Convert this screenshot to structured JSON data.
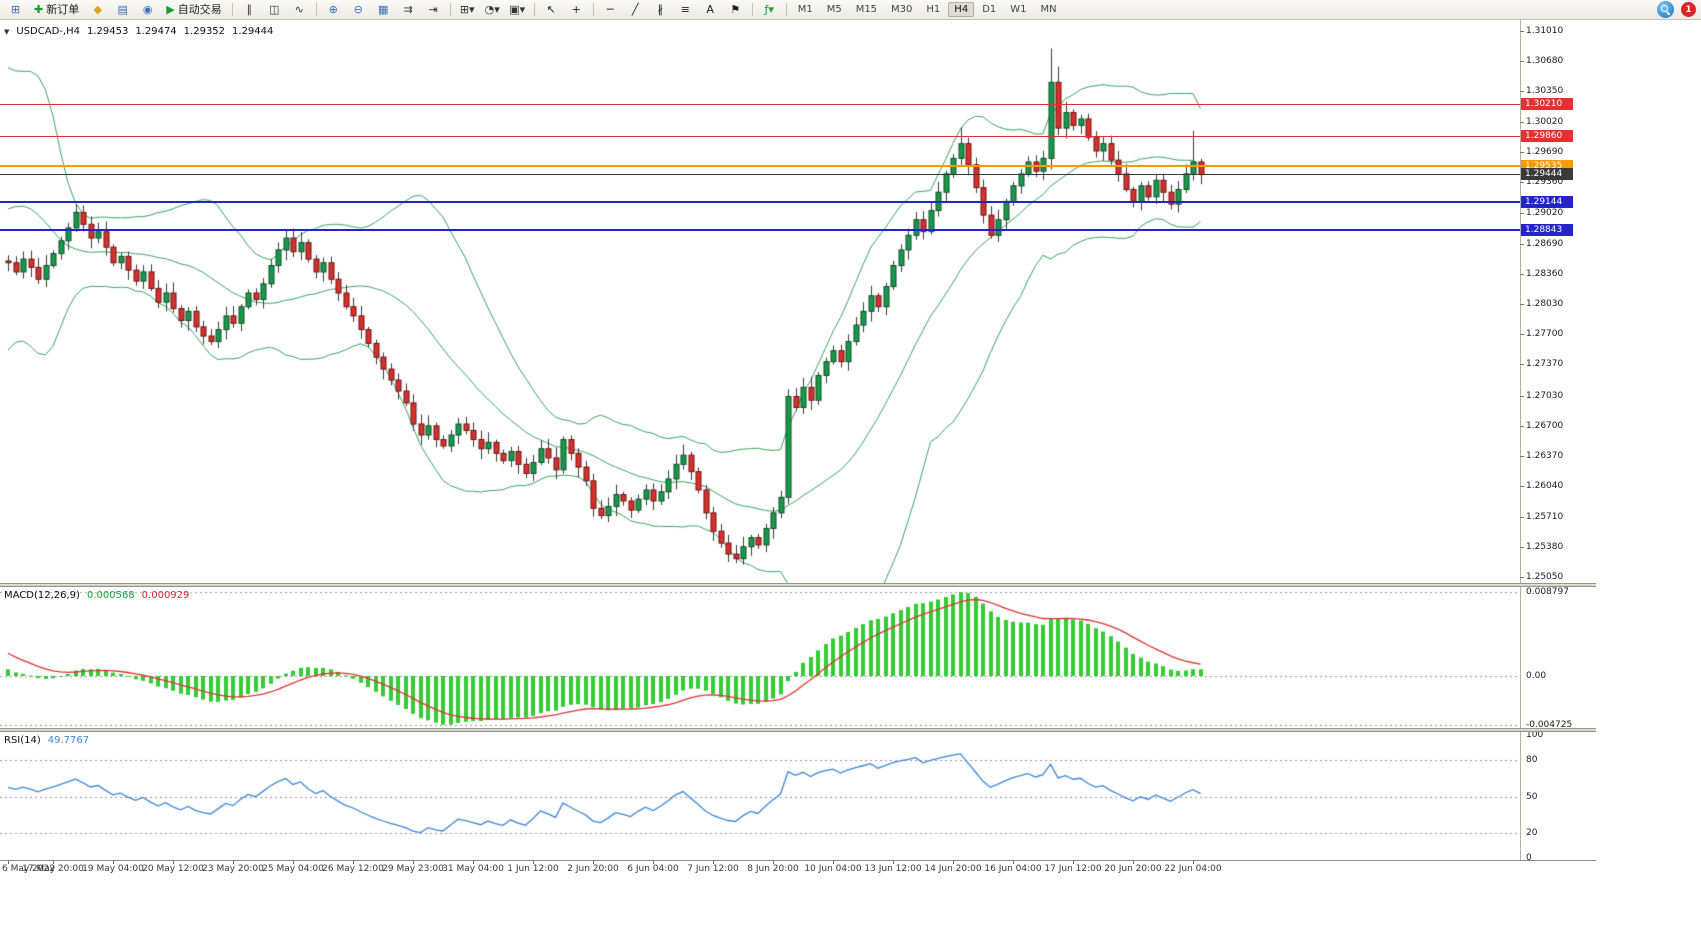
{
  "toolbar": {
    "items": [
      {
        "t": "icon",
        "n": "new-chart-icon",
        "g": "⊞",
        "c": "#3a6fb8"
      },
      {
        "t": "btn",
        "n": "new-order-button",
        "g": "✚",
        "c": "#12a02c",
        "label": "新订单"
      },
      {
        "t": "icon",
        "n": "profiles-icon",
        "g": "◆",
        "c": "#d9a520"
      },
      {
        "t": "icon",
        "n": "market-watch-icon",
        "g": "▤",
        "c": "#3a6fb8"
      },
      {
        "t": "icon",
        "n": "navigator-icon",
        "g": "◉",
        "c": "#3a6fb8"
      },
      {
        "t": "btn",
        "n": "auto-trading-button",
        "g": "▶",
        "c": "#12a02c",
        "label": "自动交易"
      },
      {
        "t": "sep"
      },
      {
        "t": "icon",
        "n": "bar-chart-icon",
        "g": "∥",
        "c": "#333333"
      },
      {
        "t": "icon",
        "n": "candlestick-chart-icon",
        "g": "◫",
        "c": "#333333"
      },
      {
        "t": "icon",
        "n": "line-chart-icon",
        "g": "∿",
        "c": "#333333"
      },
      {
        "t": "sep"
      },
      {
        "t": "icon",
        "n": "zoom-in-icon",
        "g": "⊕",
        "c": "#3a6fb8"
      },
      {
        "t": "icon",
        "n": "zoom-out-icon",
        "g": "⊖",
        "c": "#3a6fb8"
      },
      {
        "t": "icon",
        "n": "tile-windows-icon",
        "g": "▦",
        "c": "#3a6fb8"
      },
      {
        "t": "icon",
        "n": "auto-scroll-icon",
        "g": "⇉",
        "c": "#333333"
      },
      {
        "t": "icon",
        "n": "chart-shift-icon",
        "g": "⇥",
        "c": "#333333"
      },
      {
        "t": "sep"
      },
      {
        "t": "icon",
        "n": "new-chart-menu-icon",
        "g": "⊞▾",
        "c": "#333333"
      },
      {
        "t": "icon",
        "n": "periods-menu-icon",
        "g": "◔▾",
        "c": "#333333"
      },
      {
        "t": "icon",
        "n": "templates-menu-icon",
        "g": "▣▾",
        "c": "#333333"
      },
      {
        "t": "sep"
      },
      {
        "t": "icon",
        "n": "cursor-icon",
        "g": "↖",
        "c": "#222222"
      },
      {
        "t": "icon",
        "n": "crosshair-icon",
        "g": "+",
        "c": "#222222"
      },
      {
        "t": "sep"
      },
      {
        "t": "icon",
        "n": "horizontal-line-icon",
        "g": "─",
        "c": "#222222"
      },
      {
        "t": "icon",
        "n": "trendline-icon",
        "g": "╱",
        "c": "#222222"
      },
      {
        "t": "icon",
        "n": "equidistant-channel-icon",
        "g": "∦",
        "c": "#222222"
      },
      {
        "t": "icon",
        "n": "fibonacci-icon",
        "g": "≡",
        "c": "#222222"
      },
      {
        "t": "icon",
        "n": "text-tool-icon",
        "g": "A",
        "c": "#222222"
      },
      {
        "t": "icon",
        "n": "arrow-tool-icon",
        "g": "⚑",
        "c": "#222222"
      },
      {
        "t": "sep"
      },
      {
        "t": "icon",
        "n": "indicators-icon",
        "g": "ƒ▾",
        "c": "#12a02c"
      },
      {
        "t": "sep"
      }
    ],
    "timeframes": [
      "M1",
      "M5",
      "M15",
      "M30",
      "H1",
      "H4",
      "D1",
      "W1",
      "MN"
    ],
    "active_timeframe": "H4",
    "notification_count": "1"
  },
  "chart_data": {
    "type": "candlestick",
    "symbol_label": "USDCAD-,H4",
    "symbol_marker": "▼",
    "ohlc_display": {
      "open": "1.29453",
      "high": "1.29474",
      "low": "1.29352",
      "close": "1.29444"
    },
    "price_axis": {
      "top_value": 1.3101,
      "bottom_value": 1.2505,
      "labels": [
        "1.31010",
        "1.30680",
        "1.30350",
        "1.30020",
        "1.29690",
        "1.29360",
        "1.29020",
        "1.28690",
        "1.28360",
        "1.28030",
        "1.27700",
        "1.27370",
        "1.27030",
        "1.26700",
        "1.26370",
        "1.26040",
        "1.25710",
        "1.25380",
        "1.25050"
      ]
    },
    "time_axis": {
      "labels": [
        {
          "text": "6 May 2022",
          "bar": 0
        },
        {
          "text": "17 May 20:00",
          "bar": 6
        },
        {
          "text": "19 May 04:00",
          "bar": 14
        },
        {
          "text": "20 May 12:00",
          "bar": 22
        },
        {
          "text": "23 May 20:00",
          "bar": 30
        },
        {
          "text": "25 May 04:00",
          "bar": 38
        },
        {
          "text": "26 May 12:00",
          "bar": 46
        },
        {
          "text": "29 May 23:00",
          "bar": 54
        },
        {
          "text": "31 May 04:00",
          "bar": 62
        },
        {
          "text": "1 Jun 12:00",
          "bar": 70
        },
        {
          "text": "2 Jun 20:00",
          "bar": 78
        },
        {
          "text": "6 Jun 04:00",
          "bar": 86
        },
        {
          "text": "7 Jun 12:00",
          "bar": 94
        },
        {
          "text": "8 Jun 20:00",
          "bar": 102
        },
        {
          "text": "10 Jun 04:00",
          "bar": 110
        },
        {
          "text": "13 Jun 12:00",
          "bar": 118
        },
        {
          "text": "14 Jun 20:00",
          "bar": 126
        },
        {
          "text": "16 Jun 04:00",
          "bar": 134
        },
        {
          "text": "17 Jun 12:00",
          "bar": 142
        },
        {
          "text": "20 Jun 20:00",
          "bar": 150
        },
        {
          "text": "22 Jun 04:00",
          "bar": 158
        }
      ]
    },
    "levels": [
      {
        "name": "resistance-line-upper",
        "price": 1.3021,
        "label": "1.30210",
        "color": "#e43030",
        "width": 1
      },
      {
        "name": "resistance-line-lower",
        "price": 1.2986,
        "label": "1.29860",
        "color": "#e43030",
        "width": 1
      },
      {
        "name": "alert-line",
        "price": 1.29535,
        "label": "1.29535",
        "color": "#f59b00",
        "width": 2
      },
      {
        "name": "bid-price-line",
        "price": 1.29444,
        "label": "1.29444",
        "color": "#3a3a3a",
        "width": 1
      },
      {
        "name": "support-line-upper",
        "price": 1.29144,
        "label": "1.29144",
        "color": "#2424c8",
        "width": 2
      },
      {
        "name": "support-line-lower",
        "price": 1.28843,
        "label": "1.28843",
        "color": "#2424c8",
        "width": 2
      }
    ],
    "candles": {
      "history_closes": [
        1.276,
        1.279,
        1.284,
        1.29,
        1.296,
        1.301,
        1.305,
        1.306,
        1.302,
        1.2975,
        1.2935,
        1.29,
        1.2875,
        1.286,
        1.2868,
        1.2852,
        1.2842,
        1.2856,
        1.2846,
        1.285
      ],
      "closes": [
        1.2848,
        1.2838,
        1.2852,
        1.2843,
        1.283,
        1.2845,
        1.2858,
        1.2872,
        1.2886,
        1.2903,
        1.289,
        1.2875,
        1.2882,
        1.2865,
        1.2848,
        1.2855,
        1.284,
        1.2828,
        1.2838,
        1.282,
        1.2805,
        1.2815,
        1.2798,
        1.2785,
        1.2795,
        1.2778,
        1.2768,
        1.2762,
        1.2775,
        1.279,
        1.2782,
        1.28,
        1.2815,
        1.2808,
        1.2825,
        1.2845,
        1.2862,
        1.2875,
        1.286,
        1.287,
        1.2852,
        1.2838,
        1.2848,
        1.283,
        1.2815,
        1.28,
        1.279,
        1.2775,
        1.276,
        1.2745,
        1.2732,
        1.272,
        1.2708,
        1.2695,
        1.2672,
        1.266,
        1.267,
        1.2655,
        1.2648,
        1.266,
        1.2672,
        1.2665,
        1.2655,
        1.2645,
        1.2652,
        1.264,
        1.2632,
        1.2642,
        1.2628,
        1.2618,
        1.263,
        1.2645,
        1.2635,
        1.2622,
        1.2655,
        1.264,
        1.2625,
        1.261,
        1.258,
        1.2572,
        1.2582,
        1.2595,
        1.2588,
        1.2578,
        1.259,
        1.26,
        1.2588,
        1.2598,
        1.2612,
        1.2628,
        1.2638,
        1.262,
        1.26,
        1.2575,
        1.2555,
        1.2542,
        1.253,
        1.2525,
        1.2538,
        1.2548,
        1.254,
        1.2558,
        1.2575,
        1.2592,
        1.2702,
        1.269,
        1.2712,
        1.2698,
        1.2725,
        1.274,
        1.2752,
        1.274,
        1.2762,
        1.278,
        1.2795,
        1.2812,
        1.28,
        1.2822,
        1.2845,
        1.2862,
        1.2878,
        1.2895,
        1.2882,
        1.2905,
        1.2925,
        1.2945,
        1.2962,
        1.2978,
        1.2955,
        1.293,
        1.29,
        1.2878,
        1.2895,
        1.2915,
        1.2932,
        1.2945,
        1.2958,
        1.2948,
        1.2962,
        1.3045,
        1.2995,
        1.3012,
        1.2998,
        1.3005,
        1.2985,
        1.297,
        1.2978,
        1.296,
        1.2945,
        1.2928,
        1.2915,
        1.2932,
        1.292,
        1.2938,
        1.2925,
        1.2912,
        1.2928,
        1.2945,
        1.2958,
        1.29444
      ],
      "overrides": {
        "9": {
          "h": 1.2912
        },
        "97": {
          "l": 1.252
        },
        "104": {
          "l": 1.2585,
          "h": 1.271
        },
        "127": {
          "h": 1.2996
        },
        "139": {
          "h": 1.3082,
          "l": 1.295
        },
        "140": {
          "h": 1.3062
        },
        "158": {
          "h": 1.2992
        }
      }
    },
    "indicators": {
      "bollinger": {
        "period": 20,
        "deviation": 2,
        "color": "#3aa763"
      },
      "macd": {
        "label": "MACD(12,26,9)",
        "values": [
          "0.000568",
          "0.000929"
        ],
        "axis_labels": [
          "0.008797",
          "0.00",
          "-0.004725"
        ],
        "histogram_color": "#35cc35",
        "signal_color": "#e03434"
      },
      "rsi": {
        "label": "RSI(14)",
        "value": "49.7767",
        "axis_labels": [
          "100",
          "80",
          "50",
          "20",
          "0"
        ],
        "level_lines": [
          80,
          50,
          20
        ],
        "color": "#3f86d8"
      }
    },
    "colors": {
      "bull": "#169a4a",
      "bull_border": "#114f28",
      "bear": "#d5312e",
      "bear_border": "#6e1413",
      "wick": "#3c3c3c",
      "background": "#ffffff"
    }
  }
}
